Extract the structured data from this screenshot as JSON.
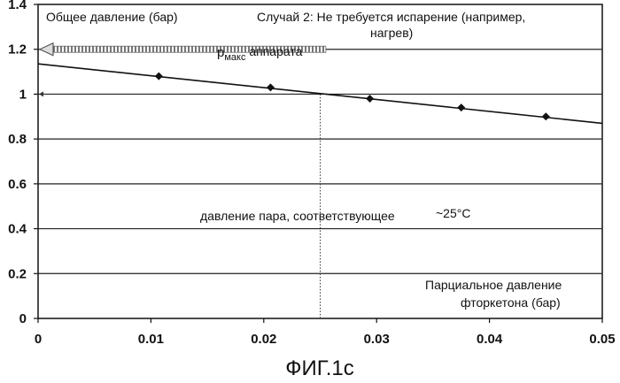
{
  "chart_data": {
    "type": "line",
    "title": "Случай 2: Не требуется испарение (например, нагрев)",
    "title_lines": [
      "Случай 2: Не требуется испарение (например,",
      "нагрев)"
    ],
    "ylabel": "Общее давление (бар)",
    "xlabel_lines": [
      "Парциальное давление",
      "фторкетона (бар)"
    ],
    "figure_caption": "ФИГ.1с",
    "xlim": [
      0,
      0.05
    ],
    "ylim": [
      0,
      1.4
    ],
    "x_ticks": [
      "0",
      "0.01",
      "0.02",
      "0.03",
      "0.04",
      "0.05"
    ],
    "y_ticks": [
      "0",
      "0.2",
      "0.4",
      "0.6",
      "0.8",
      "1",
      "1.2",
      "1.4"
    ],
    "grid": "horizontal",
    "series": [
      {
        "marker": "diamond",
        "x": [
          0.0107,
          0.0206,
          0.0294,
          0.0375,
          0.045
        ],
        "y": [
          1.08,
          1.03,
          0.98,
          0.94,
          0.9
        ]
      }
    ],
    "trend_line": {
      "x": [
        0,
        0.05
      ],
      "y": [
        1.135,
        0.87
      ]
    },
    "annotations": {
      "pmax": {
        "main": "p",
        "subscript": "макс",
        "rest": " аппарата",
        "y": 1.2,
        "x_end": 0.0255
      },
      "vapor": {
        "text": "давление пара, соответствующее",
        "temperature": "~25°C"
      },
      "intersection": {
        "x": 0.025,
        "y": 1.0
      }
    }
  }
}
